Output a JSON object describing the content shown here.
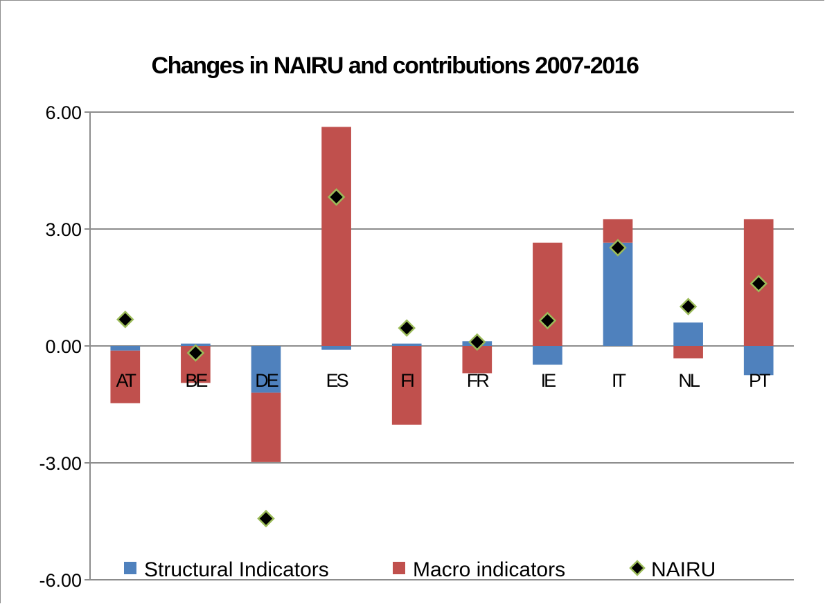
{
  "chart_data": {
    "type": "bar",
    "title": "Changes in NAIRU and contributions 2007-2016",
    "categories": [
      "AT",
      "BE",
      "DE",
      "ES",
      "FI",
      "FR",
      "IE",
      "IT",
      "NL",
      "PT"
    ],
    "series": [
      {
        "name": "Structural Indicators",
        "kind": "stacked-bar",
        "color": "#4f81bd",
        "values": [
          -0.12,
          0.06,
          -1.2,
          -0.1,
          0.06,
          0.12,
          -0.48,
          2.65,
          0.6,
          -0.75
        ]
      },
      {
        "name": "Macro indicators",
        "kind": "stacked-bar",
        "color": "#c0504d",
        "values": [
          -1.35,
          -0.95,
          -1.78,
          5.62,
          -2.02,
          -0.7,
          2.65,
          0.6,
          -0.32,
          3.25
        ]
      },
      {
        "name": "NAIRU",
        "kind": "marker",
        "color": "#000000",
        "marker_edge": "#9bbb59",
        "values": [
          0.68,
          -0.18,
          -4.43,
          3.82,
          0.46,
          0.1,
          0.65,
          2.52,
          1.01,
          1.6
        ]
      }
    ],
    "y_ticks": [
      "6.00",
      "3.00",
      "0.00",
      "-3.00",
      "-6.00"
    ],
    "ylim": [
      -6,
      6
    ],
    "grid": true,
    "legend_position": "bottom"
  }
}
